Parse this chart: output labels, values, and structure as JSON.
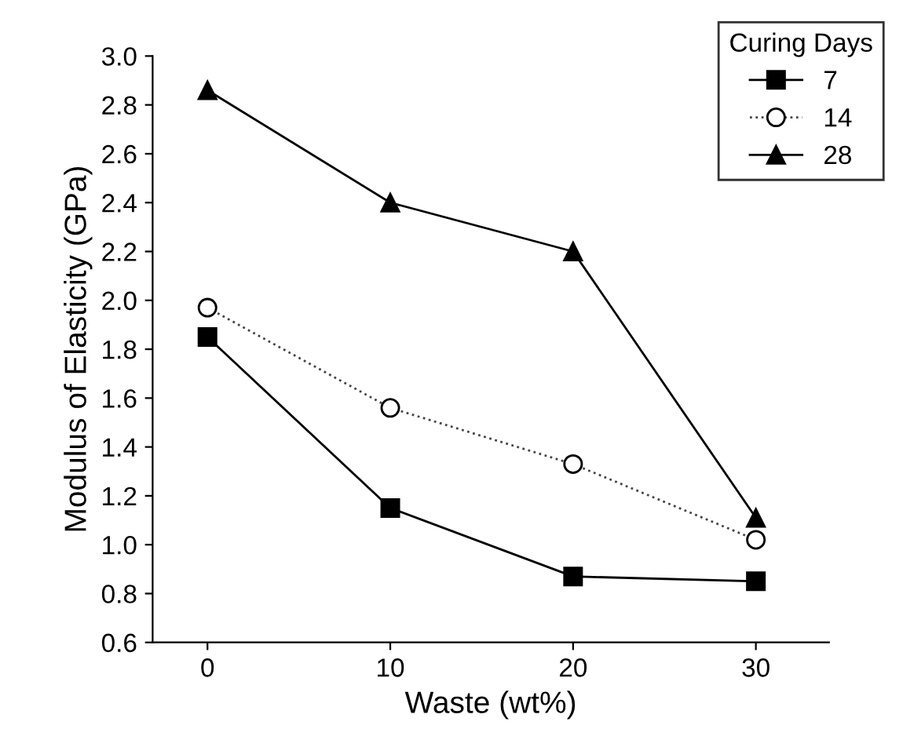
{
  "chart_data": {
    "type": "line",
    "xlabel": "Waste (wt%)",
    "ylabel": "Modulus of Elasticity (GPa)",
    "legend_title": "Curing Days",
    "x": [
      0,
      10,
      20,
      30
    ],
    "series": [
      {
        "name": "7",
        "color": "#000000",
        "marker": "square",
        "line_style": "solid",
        "values": [
          1.85,
          1.15,
          0.87,
          0.85
        ]
      },
      {
        "name": "14",
        "color": "#444444",
        "marker": "circle",
        "line_style": "dotted",
        "values": [
          1.97,
          1.56,
          1.33,
          1.02
        ]
      },
      {
        "name": "28",
        "color": "#000000",
        "marker": "triangle",
        "line_style": "solid",
        "values": [
          2.86,
          2.4,
          2.2,
          1.11
        ]
      }
    ],
    "xlim": [
      -3,
      34
    ],
    "xticks": [
      0,
      10,
      20,
      30
    ],
    "ylim": [
      0.6,
      3.0
    ],
    "yticks": [
      0.6,
      0.8,
      {
        "value": 1,
        "label": "1.0"
      },
      1.2,
      1.4,
      1.6,
      1.8,
      {
        "value": 2,
        "label": "2.0"
      },
      2.2,
      2.4,
      2.6,
      2.8,
      {
        "value": 3,
        "label": "3.0"
      }
    ],
    "grid": false,
    "legend": "top right"
  }
}
